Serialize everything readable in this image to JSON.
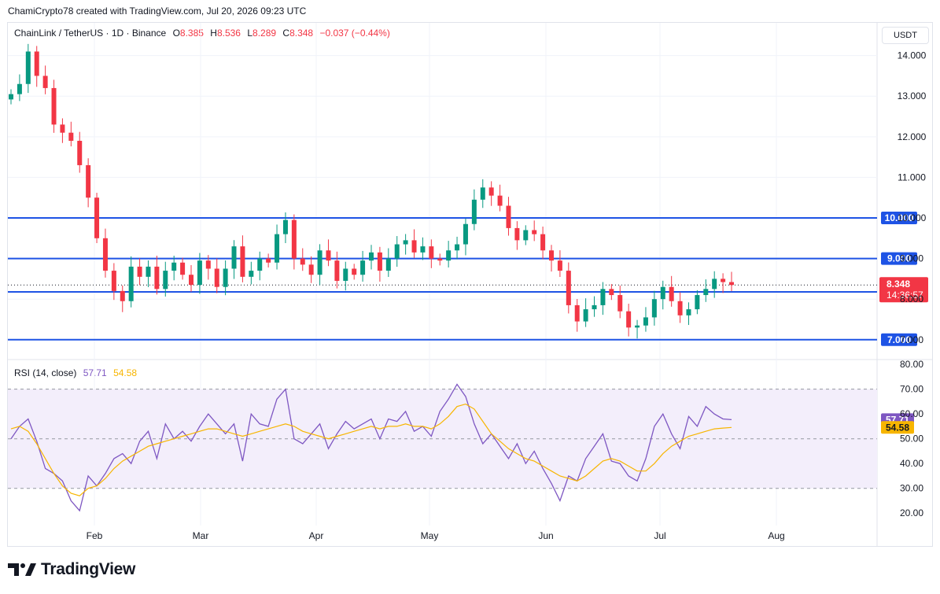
{
  "header": {
    "caption": "ChamiCrypto78 created with TradingView.com, Jul 20, 2026 09:23 UTC"
  },
  "legend": {
    "symbol": "ChainLink / TetherUS · 1D · Binance",
    "o_key": "O",
    "o_val": "8.385",
    "h_key": "H",
    "h_val": "8.536",
    "l_key": "L",
    "l_val": "8.289",
    "c_key": "C",
    "c_val": "8.348",
    "change": "−0.037 (−0.44%)"
  },
  "rsi_legend": {
    "label": "RSI (14, close)",
    "rsi": "57.71",
    "ma": "54.58"
  },
  "currency": "USDT",
  "logo": {
    "text": "TradingView"
  },
  "colors": {
    "up": "#089981",
    "down": "#f23645",
    "level": "#1e53e5",
    "rsi": "#7e57c2",
    "rsi_ma": "#f7b500",
    "rsi_band": "#f3eefb"
  },
  "chart_data": [
    {
      "type": "candlestick",
      "title": "ChainLink / TetherUS · 1D · Binance",
      "x_ticks": [
        "Feb",
        "Mar",
        "Apr",
        "May",
        "Jun",
        "Jul",
        "Aug"
      ],
      "y_ticks": [
        "14.000",
        "13.000",
        "12.000",
        "11.000",
        "10.000",
        "9.000",
        "8.000",
        "7.000"
      ],
      "ylim": [
        6.55,
        14.4
      ],
      "horizontal_levels": [
        {
          "value": 10.0,
          "label": "10.000"
        },
        {
          "value": 9.0,
          "label": "9.000"
        },
        {
          "value": 8.178,
          "label": "8.178"
        },
        {
          "value": 7.0,
          "label": "7.000"
        }
      ],
      "last_price": {
        "value": 8.348,
        "label": "8.348",
        "countdown": "14:36:57"
      },
      "close_series": [
        13.05,
        13.3,
        14.1,
        13.5,
        13.2,
        12.3,
        12.1,
        11.9,
        11.3,
        10.5,
        9.5,
        8.7,
        8.2,
        7.95,
        8.8,
        8.55,
        8.8,
        8.25,
        8.7,
        8.9,
        8.6,
        8.35,
        8.95,
        8.75,
        8.3,
        8.75,
        9.3,
        8.55,
        8.7,
        9.0,
        8.9,
        9.6,
        9.95,
        9.0,
        8.85,
        8.6,
        9.2,
        8.95,
        8.45,
        8.75,
        8.6,
        8.95,
        9.15,
        8.7,
        9.0,
        9.35,
        9.45,
        9.15,
        9.3,
        9.0,
        8.95,
        9.2,
        9.35,
        9.85,
        10.45,
        10.75,
        10.55,
        10.3,
        9.75,
        9.45,
        9.7,
        9.6,
        9.2,
        8.95,
        8.7,
        7.85,
        7.45,
        7.75,
        7.85,
        8.25,
        8.1,
        7.7,
        7.3,
        7.35,
        7.55,
        8.0,
        8.3,
        7.95,
        7.6,
        7.75,
        8.1,
        8.25,
        8.5,
        8.42,
        8.348
      ]
    },
    {
      "type": "line",
      "title": "RSI (14, close)",
      "y_ticks": [
        "80.00",
        "70.00",
        "60.00",
        "50.00",
        "40.00",
        "30.00",
        "20.00"
      ],
      "ylim": [
        15,
        81
      ],
      "bands": [
        70,
        50,
        30
      ],
      "series": [
        {
          "name": "RSI",
          "values": [
            50,
            55,
            58,
            49,
            38,
            36,
            33,
            25,
            21,
            35,
            31,
            36,
            42,
            44,
            40,
            49,
            53,
            42,
            56,
            50,
            53,
            49,
            55,
            60,
            56,
            52,
            56,
            41,
            60,
            56,
            55,
            66,
            70,
            50,
            48,
            52,
            56,
            46,
            52,
            57,
            54,
            56,
            58,
            50,
            58,
            57,
            61,
            53,
            55,
            51,
            61,
            66,
            72,
            67,
            56,
            48,
            52,
            47,
            42,
            48,
            40,
            45,
            38,
            32,
            25,
            35,
            33,
            42,
            47,
            52,
            41,
            40,
            35,
            33,
            42,
            55,
            60,
            52,
            46,
            59,
            55,
            63,
            60,
            58,
            57.71
          ]
        },
        {
          "name": "MA",
          "values": [
            54,
            55,
            53,
            48,
            42,
            36,
            31,
            28,
            27,
            30,
            31,
            34,
            38,
            41,
            43,
            45,
            47,
            48,
            49,
            50,
            51,
            52,
            53,
            54,
            54,
            53,
            52,
            51,
            52,
            53,
            54,
            55,
            56,
            55,
            53,
            52,
            51,
            50,
            51,
            52,
            53,
            54,
            55,
            54,
            55,
            55,
            56,
            55,
            55,
            54,
            56,
            59,
            63,
            64,
            62,
            57,
            52,
            49,
            46,
            44,
            42,
            41,
            39,
            37,
            35,
            34,
            33,
            35,
            38,
            41,
            42,
            41,
            39,
            37,
            37,
            40,
            44,
            47,
            49,
            51,
            52,
            53,
            54,
            54.3,
            54.58
          ]
        }
      ],
      "value_labels": [
        {
          "label": "57.71"
        },
        {
          "label": "54.58"
        }
      ]
    }
  ]
}
